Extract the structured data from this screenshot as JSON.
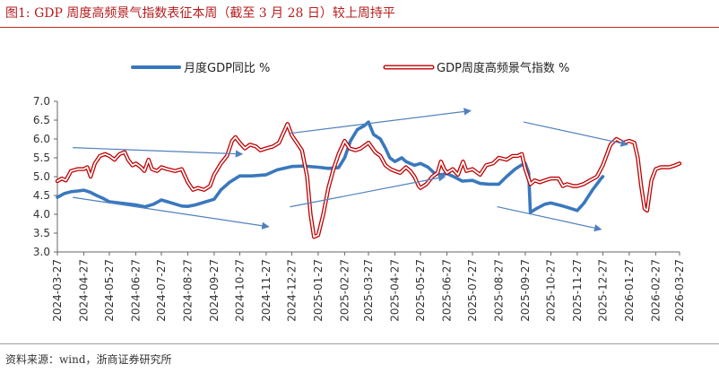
{
  "figure": {
    "title": "图1:   GDP 周度高频景气指数表征本周（截至 3 月 28 日）较上周持平",
    "source": "资料来源：wind，浙商证券研究所"
  },
  "chart_data": {
    "type": "line",
    "ylim": [
      3.0,
      7.0
    ],
    "yticks": [
      3.0,
      3.5,
      4.0,
      4.5,
      5.0,
      5.5,
      6.0,
      6.5,
      7.0
    ],
    "xlim": [
      "2024-03-27",
      "2026-03-27"
    ],
    "xticks": [
      "2024-03-27",
      "2024-04-27",
      "2024-05-27",
      "2024-06-27",
      "2024-07-27",
      "2024-08-27",
      "2024-09-27",
      "2024-10-27",
      "2024-11-27",
      "2024-12-27",
      "2025-01-27",
      "2025-02-27",
      "2025-03-27",
      "2025-04-27",
      "2025-05-27",
      "2025-06-27",
      "2025-07-27",
      "2025-08-27",
      "2025-09-27",
      "2025-10-27",
      "2025-11-27",
      "2025-12-27",
      "2026-01-27",
      "2026-02-27",
      "2026-03-27"
    ],
    "grid": false,
    "legend_position": "top",
    "colors": {
      "monthly": "#3a78bd",
      "weekly_outline": "#c00000",
      "trend_arrows": "#4f81bd"
    },
    "series": [
      {
        "name": "月度GDP同比 %",
        "style": "thick-blue",
        "points": [
          [
            "2024-03-27",
            4.45
          ],
          [
            "2024-04-04",
            4.55
          ],
          [
            "2024-04-12",
            4.6
          ],
          [
            "2024-04-20",
            4.62
          ],
          [
            "2024-04-27",
            4.64
          ],
          [
            "2024-05-05",
            4.58
          ],
          [
            "2024-05-12",
            4.5
          ],
          [
            "2024-05-20",
            4.42
          ],
          [
            "2024-05-27",
            4.33
          ],
          [
            "2024-06-05",
            4.31
          ],
          [
            "2024-06-15",
            4.28
          ],
          [
            "2024-06-27",
            4.25
          ],
          [
            "2024-07-08",
            4.2
          ],
          [
            "2024-07-18",
            4.27
          ],
          [
            "2024-07-27",
            4.38
          ],
          [
            "2024-08-08",
            4.3
          ],
          [
            "2024-08-20",
            4.22
          ],
          [
            "2024-08-27",
            4.21
          ],
          [
            "2024-09-05",
            4.25
          ],
          [
            "2024-09-15",
            4.32
          ],
          [
            "2024-09-27",
            4.4
          ],
          [
            "2024-10-05",
            4.65
          ],
          [
            "2024-10-15",
            4.85
          ],
          [
            "2024-10-27",
            5.02
          ],
          [
            "2024-11-10",
            5.02
          ],
          [
            "2024-11-27",
            5.05
          ],
          [
            "2024-12-10",
            5.18
          ],
          [
            "2024-12-27",
            5.27
          ],
          [
            "2025-01-10",
            5.28
          ],
          [
            "2025-01-27",
            5.25
          ],
          [
            "2025-02-08",
            5.22
          ],
          [
            "2025-02-20",
            5.24
          ],
          [
            "2025-02-27",
            5.5
          ],
          [
            "2025-03-06",
            5.95
          ],
          [
            "2025-03-14",
            6.25
          ],
          [
            "2025-03-22",
            6.35
          ],
          [
            "2025-03-27",
            6.45
          ],
          [
            "2025-04-02",
            6.12
          ],
          [
            "2025-04-10",
            6.0
          ],
          [
            "2025-04-16",
            5.75
          ],
          [
            "2025-04-21",
            5.5
          ],
          [
            "2025-04-27",
            5.4
          ],
          [
            "2025-05-05",
            5.5
          ],
          [
            "2025-05-10",
            5.4
          ],
          [
            "2025-05-15",
            5.35
          ],
          [
            "2025-05-20",
            5.3
          ],
          [
            "2025-05-27",
            5.35
          ],
          [
            "2025-06-05",
            5.25
          ],
          [
            "2025-06-12",
            5.1
          ],
          [
            "2025-06-20",
            5.05
          ],
          [
            "2025-06-27",
            5.08
          ],
          [
            "2025-07-05",
            5.0
          ],
          [
            "2025-07-15",
            4.88
          ],
          [
            "2025-07-27",
            4.9
          ],
          [
            "2025-08-05",
            4.82
          ],
          [
            "2025-08-15",
            4.8
          ],
          [
            "2025-08-27",
            4.8
          ],
          [
            "2025-09-05",
            5.0
          ],
          [
            "2025-09-15",
            5.2
          ],
          [
            "2025-09-22",
            5.3
          ],
          [
            "2025-09-27",
            5.35
          ],
          [
            "2025-10-01",
            5.1
          ],
          [
            "2025-10-03",
            4.05
          ],
          [
            "2025-10-10",
            4.15
          ],
          [
            "2025-10-20",
            4.27
          ],
          [
            "2025-10-27",
            4.3
          ],
          [
            "2025-11-10",
            4.22
          ],
          [
            "2025-11-20",
            4.15
          ],
          [
            "2025-11-27",
            4.1
          ],
          [
            "2025-12-05",
            4.3
          ],
          [
            "2025-12-15",
            4.65
          ],
          [
            "2025-12-25",
            4.95
          ],
          [
            "2025-12-27",
            5.0
          ]
        ]
      },
      {
        "name": "GDP周度高频景气指数 %",
        "style": "red-outline",
        "points": [
          [
            "2024-03-27",
            4.88
          ],
          [
            "2024-04-01",
            4.95
          ],
          [
            "2024-04-06",
            4.9
          ],
          [
            "2024-04-12",
            5.15
          ],
          [
            "2024-04-20",
            5.2
          ],
          [
            "2024-04-27",
            5.2
          ],
          [
            "2024-05-01",
            5.25
          ],
          [
            "2024-05-05",
            5.0
          ],
          [
            "2024-05-10",
            5.35
          ],
          [
            "2024-05-16",
            5.55
          ],
          [
            "2024-05-22",
            5.6
          ],
          [
            "2024-05-27",
            5.55
          ],
          [
            "2024-06-02",
            5.45
          ],
          [
            "2024-06-08",
            5.6
          ],
          [
            "2024-06-14",
            5.65
          ],
          [
            "2024-06-18",
            5.45
          ],
          [
            "2024-06-23",
            5.3
          ],
          [
            "2024-06-27",
            5.35
          ],
          [
            "2024-07-03",
            5.25
          ],
          [
            "2024-07-07",
            5.15
          ],
          [
            "2024-07-12",
            5.45
          ],
          [
            "2024-07-16",
            5.2
          ],
          [
            "2024-07-22",
            5.15
          ],
          [
            "2024-07-27",
            5.25
          ],
          [
            "2024-08-03",
            5.2
          ],
          [
            "2024-08-12",
            5.15
          ],
          [
            "2024-08-20",
            5.2
          ],
          [
            "2024-08-27",
            4.85
          ],
          [
            "2024-09-02",
            4.65
          ],
          [
            "2024-09-08",
            4.7
          ],
          [
            "2024-09-15",
            4.65
          ],
          [
            "2024-09-22",
            4.75
          ],
          [
            "2024-09-27",
            5.05
          ],
          [
            "2024-10-05",
            5.35
          ],
          [
            "2024-10-12",
            5.55
          ],
          [
            "2024-10-18",
            5.95
          ],
          [
            "2024-10-22",
            6.05
          ],
          [
            "2024-10-27",
            5.9
          ],
          [
            "2024-11-02",
            5.75
          ],
          [
            "2024-11-08",
            5.85
          ],
          [
            "2024-11-15",
            5.8
          ],
          [
            "2024-11-20",
            5.7
          ],
          [
            "2024-11-27",
            5.75
          ],
          [
            "2024-12-05",
            5.8
          ],
          [
            "2024-12-12",
            5.9
          ],
          [
            "2024-12-18",
            6.2
          ],
          [
            "2024-12-22",
            6.4
          ],
          [
            "2024-12-27",
            6.1
          ],
          [
            "2025-01-02",
            5.9
          ],
          [
            "2025-01-08",
            5.7
          ],
          [
            "2025-01-14",
            5.0
          ],
          [
            "2025-01-18",
            4.0
          ],
          [
            "2025-01-22",
            3.4
          ],
          [
            "2025-01-27",
            3.45
          ],
          [
            "2025-02-02",
            4.0
          ],
          [
            "2025-02-08",
            4.7
          ],
          [
            "2025-02-14",
            5.2
          ],
          [
            "2025-02-20",
            5.6
          ],
          [
            "2025-02-27",
            5.95
          ],
          [
            "2025-03-05",
            5.75
          ],
          [
            "2025-03-12",
            5.7
          ],
          [
            "2025-03-18",
            5.75
          ],
          [
            "2025-03-27",
            5.9
          ],
          [
            "2025-04-04",
            5.65
          ],
          [
            "2025-04-10",
            5.55
          ],
          [
            "2025-04-16",
            5.3
          ],
          [
            "2025-04-22",
            5.2
          ],
          [
            "2025-04-27",
            5.15
          ],
          [
            "2025-05-03",
            5.1
          ],
          [
            "2025-05-10",
            5.25
          ],
          [
            "2025-05-15",
            5.15
          ],
          [
            "2025-05-20",
            5.0
          ],
          [
            "2025-05-25",
            4.75
          ],
          [
            "2025-05-27",
            4.7
          ],
          [
            "2025-06-03",
            4.8
          ],
          [
            "2025-06-10",
            5.0
          ],
          [
            "2025-06-16",
            5.1
          ],
          [
            "2025-06-20",
            5.4
          ],
          [
            "2025-06-24",
            5.2
          ],
          [
            "2025-06-27",
            5.1
          ],
          [
            "2025-07-04",
            5.2
          ],
          [
            "2025-07-10",
            5.05
          ],
          [
            "2025-07-16",
            5.4
          ],
          [
            "2025-07-20",
            5.15
          ],
          [
            "2025-07-27",
            5.2
          ],
          [
            "2025-08-05",
            5.05
          ],
          [
            "2025-08-12",
            5.3
          ],
          [
            "2025-08-20",
            5.35
          ],
          [
            "2025-08-27",
            5.5
          ],
          [
            "2025-09-05",
            5.45
          ],
          [
            "2025-09-12",
            5.55
          ],
          [
            "2025-09-18",
            5.55
          ],
          [
            "2025-09-23",
            5.6
          ],
          [
            "2025-09-27",
            5.2
          ],
          [
            "2025-10-03",
            4.8
          ],
          [
            "2025-10-08",
            4.9
          ],
          [
            "2025-10-14",
            4.85
          ],
          [
            "2025-10-20",
            4.9
          ],
          [
            "2025-10-27",
            4.95
          ],
          [
            "2025-11-05",
            4.95
          ],
          [
            "2025-11-10",
            4.75
          ],
          [
            "2025-11-15",
            4.8
          ],
          [
            "2025-11-22",
            4.75
          ],
          [
            "2025-11-27",
            4.75
          ],
          [
            "2025-12-04",
            4.8
          ],
          [
            "2025-12-12",
            4.9
          ],
          [
            "2025-12-20",
            5.0
          ],
          [
            "2025-12-27",
            5.3
          ],
          [
            "2026-01-05",
            5.85
          ],
          [
            "2026-01-12",
            6.0
          ],
          [
            "2026-01-20",
            5.9
          ],
          [
            "2026-01-27",
            5.95
          ],
          [
            "2026-02-02",
            5.9
          ],
          [
            "2026-02-06",
            5.5
          ],
          [
            "2026-02-10",
            4.75
          ],
          [
            "2026-02-14",
            4.15
          ],
          [
            "2026-02-17",
            4.1
          ],
          [
            "2026-02-22",
            4.9
          ],
          [
            "2026-02-27",
            5.2
          ],
          [
            "2026-03-05",
            5.25
          ],
          [
            "2026-03-15",
            5.25
          ],
          [
            "2026-03-22",
            5.3
          ],
          [
            "2026-03-27",
            5.35
          ]
        ]
      }
    ],
    "annotations": [
      {
        "type": "trend-arrow",
        "from": [
          "2024-04-14",
          5.77
        ],
        "to": [
          "2024-10-30",
          5.6
        ]
      },
      {
        "type": "trend-arrow",
        "from": [
          "2024-04-14",
          4.45
        ],
        "to": [
          "2024-11-30",
          3.67
        ]
      },
      {
        "type": "trend-arrow",
        "from": [
          "2024-12-25",
          6.15
        ],
        "to": [
          "2025-07-25",
          6.75
        ]
      },
      {
        "type": "trend-arrow",
        "from": [
          "2024-12-25",
          4.2
        ],
        "to": [
          "2025-06-25",
          5.0
        ]
      },
      {
        "type": "trend-arrow",
        "from": [
          "2025-09-25",
          6.45
        ],
        "to": [
          "2026-01-25",
          5.85
        ]
      },
      {
        "type": "trend-arrow",
        "from": [
          "2025-08-25",
          4.2
        ],
        "to": [
          "2025-12-25",
          3.6
        ]
      }
    ]
  }
}
